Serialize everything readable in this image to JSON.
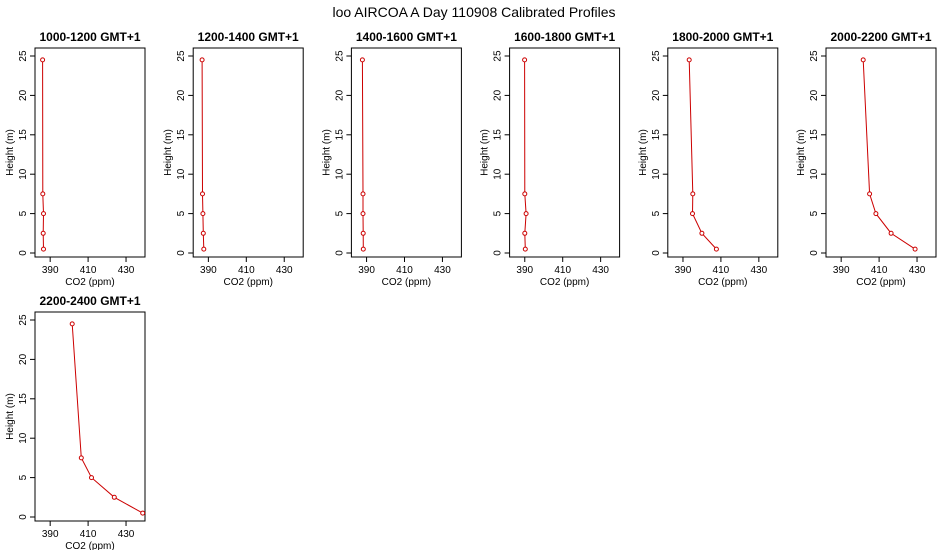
{
  "title": "loo AIRCOA A  Day 110908  Calibrated Profiles",
  "chart_data": {
    "type": "line",
    "xlabel": "CO2 (ppm)",
    "ylabel": "Height (m)",
    "xlim": [
      382,
      440
    ],
    "ylim": [
      0,
      25
    ],
    "xticks": [
      390,
      410,
      430
    ],
    "yticks": [
      0,
      5,
      10,
      15,
      20,
      25
    ],
    "series_color": "#cc0000",
    "marker": "open-circle",
    "heights": [
      0.5,
      2.5,
      5,
      7.5,
      24.5
    ],
    "panels": [
      {
        "title": "1000-1200 GMT+1",
        "x": [
          386.5,
          386.3,
          386.5,
          386.1,
          386.0
        ]
      },
      {
        "title": "1200-1400 GMT+1",
        "x": [
          387.6,
          387.3,
          387.1,
          386.9,
          386.7
        ]
      },
      {
        "title": "1400-1600 GMT+1",
        "x": [
          388.3,
          388.2,
          388.1,
          388.1,
          387.8
        ]
      },
      {
        "title": "1600-1800 GMT+1",
        "x": [
          390.3,
          390.0,
          390.7,
          390.0,
          389.9
        ]
      },
      {
        "title": "1800-2000 GMT+1",
        "x": [
          407.6,
          400.0,
          395.0,
          395.2,
          393.3
        ]
      },
      {
        "title": "2000-2200 GMT+1",
        "x": [
          429.0,
          416.3,
          408.3,
          405.0,
          401.6
        ]
      },
      {
        "title": "2200-2400 GMT+1",
        "x": [
          438.8,
          423.8,
          411.8,
          406.4,
          401.6
        ]
      }
    ]
  }
}
